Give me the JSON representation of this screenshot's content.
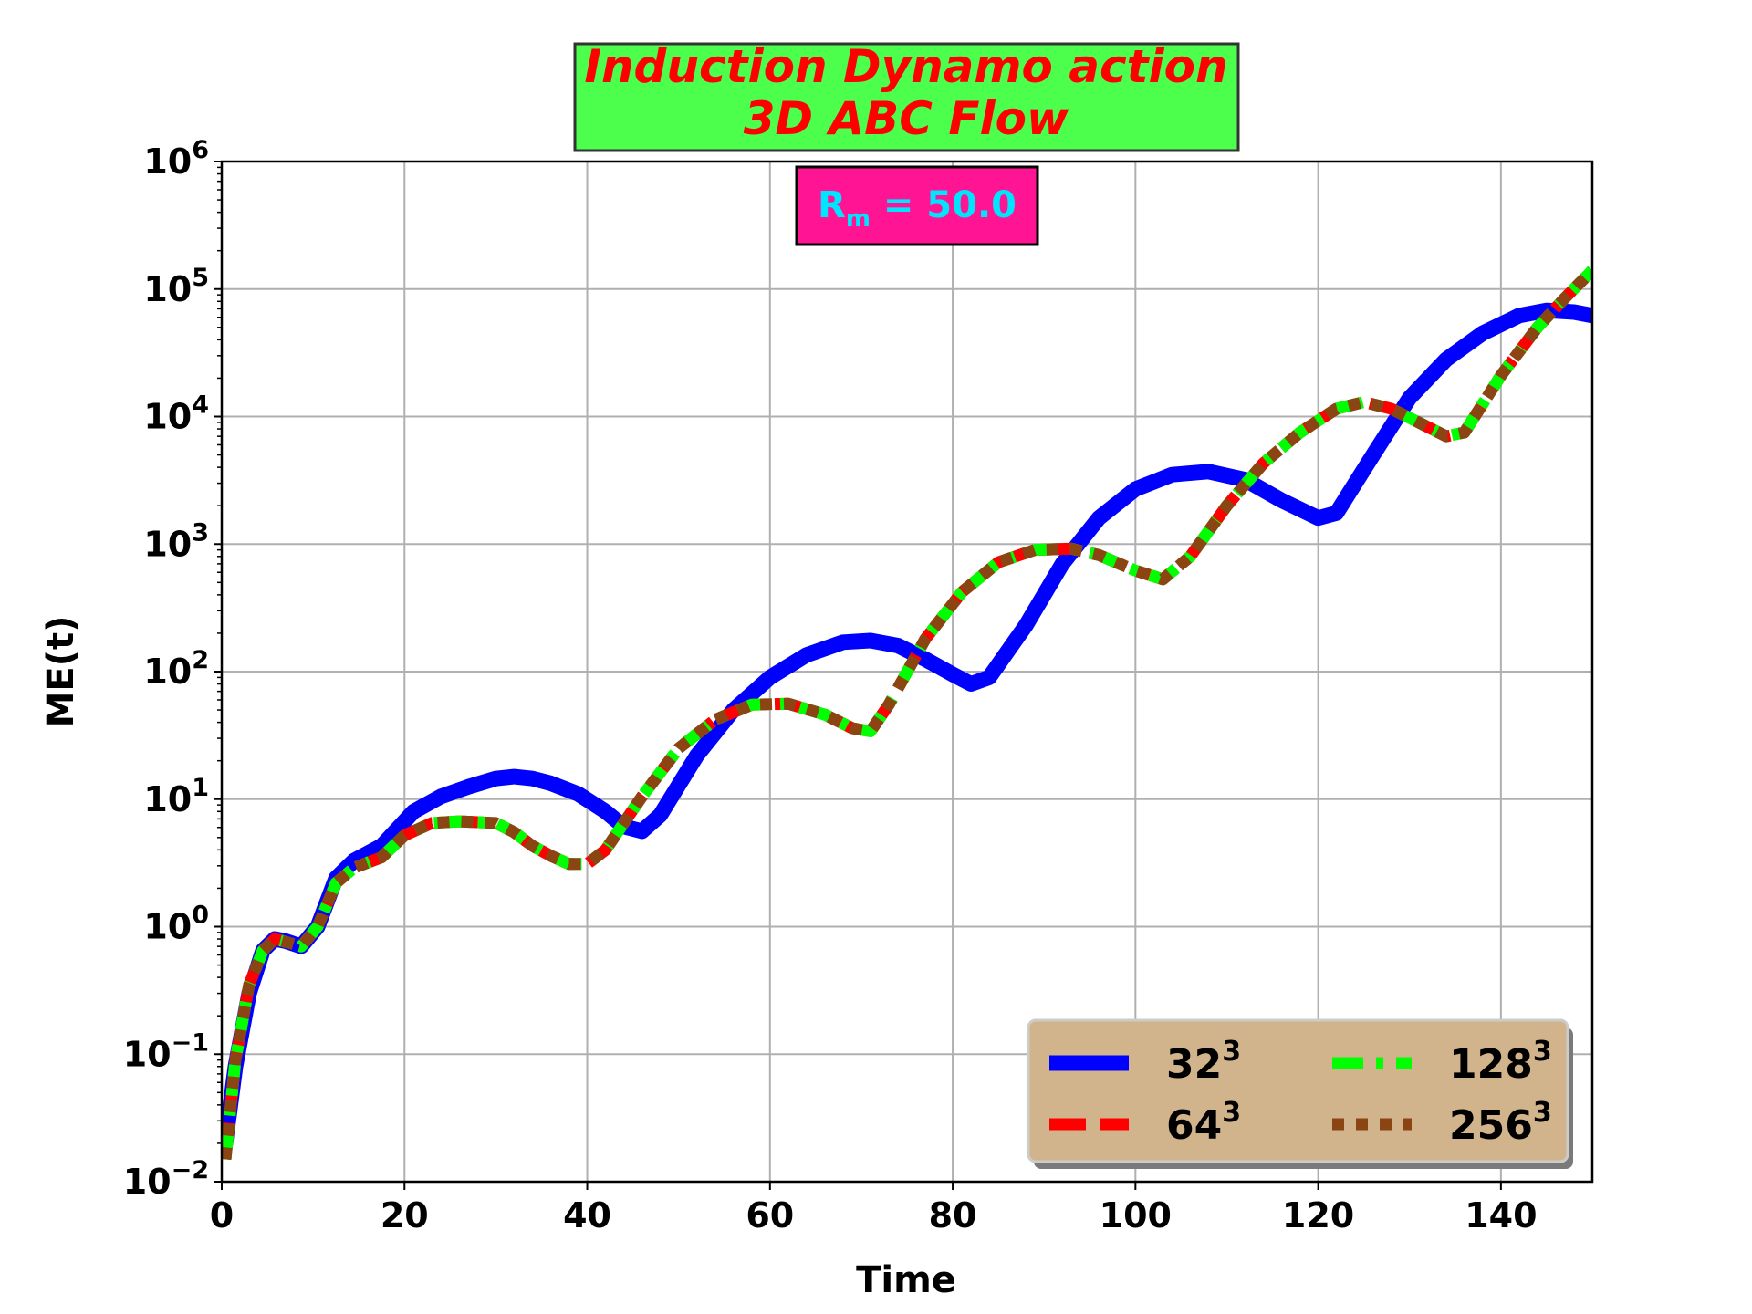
{
  "chart_data": {
    "type": "line",
    "title": [
      "Induction Dynamo action",
      "3D ABC Flow"
    ],
    "annotation": {
      "symbol": "R",
      "subscript": "m",
      "text": " = 50.0"
    },
    "xlabel": "Time",
    "ylabel": "ME(t)",
    "xlim": [
      0,
      150
    ],
    "ylim": [
      0.01,
      1000000
    ],
    "yscale": "log",
    "grid": true,
    "legend_position": "lower-right",
    "x_ticks": [
      "0",
      "20",
      "40",
      "60",
      "80",
      "100",
      "120",
      "140"
    ],
    "y_ticks": [
      {
        "base": "10",
        "exp": "−2"
      },
      {
        "base": "10",
        "exp": "−1"
      },
      {
        "base": "10",
        "exp": "0"
      },
      {
        "base": "10",
        "exp": "1"
      },
      {
        "base": "10",
        "exp": "2"
      },
      {
        "base": "10",
        "exp": "3"
      },
      {
        "base": "10",
        "exp": "4"
      },
      {
        "base": "10",
        "exp": "5"
      },
      {
        "base": "10",
        "exp": "6"
      }
    ],
    "series": [
      {
        "name": "32",
        "name_sup": "3",
        "color": "#0000ff",
        "style": "solid",
        "x": [
          0.4,
          1.5,
          3,
          4.5,
          5.8,
          7,
          8.7,
          10.5,
          12.5,
          14.5,
          17.5,
          21,
          24,
          27,
          30,
          32,
          34,
          36,
          39,
          42,
          44,
          46,
          48,
          52,
          56,
          60,
          64,
          68,
          71,
          74,
          77,
          80,
          82,
          84,
          88,
          92,
          96,
          100,
          104,
          108,
          112,
          116,
          120,
          122,
          126,
          130,
          134,
          138,
          142,
          145,
          148,
          150
        ],
        "y": [
          0.02,
          0.08,
          0.3,
          0.65,
          0.8,
          0.77,
          0.7,
          1.0,
          2.4,
          3.3,
          4.3,
          8.0,
          10.5,
          12.5,
          14.5,
          15.0,
          14.5,
          13.3,
          11.0,
          8.0,
          6.1,
          5.6,
          7.5,
          22,
          50,
          90,
          135,
          170,
          175,
          160,
          125,
          95,
          80,
          90,
          230,
          700,
          1600,
          2700,
          3500,
          3700,
          3200,
          2200,
          1600,
          1750,
          5000,
          14000,
          28000,
          45000,
          62000,
          68000,
          66000,
          62000
        ]
      },
      {
        "name": "64",
        "name_sup": "3",
        "color": "#ff0000",
        "style": "dashed",
        "x": [
          0.4,
          1.5,
          3,
          4.5,
          5.8,
          7,
          8.7,
          10.5,
          12.5,
          14.5,
          17.5,
          20,
          23,
          26,
          30,
          32,
          34,
          36,
          38,
          40,
          42,
          44,
          46,
          50,
          54,
          58,
          62,
          66,
          69,
          71,
          73,
          77,
          81,
          85,
          89,
          93,
          96,
          100,
          103,
          106,
          110,
          114,
          118,
          122,
          125,
          128,
          131,
          134,
          136,
          140,
          144,
          147,
          150
        ],
        "y": [
          0.015,
          0.09,
          0.35,
          0.65,
          0.8,
          0.76,
          0.7,
          1.0,
          2.2,
          2.9,
          3.5,
          5.2,
          6.5,
          6.7,
          6.5,
          5.5,
          4.3,
          3.6,
          3.1,
          3.1,
          4.0,
          6.5,
          10.5,
          25,
          42,
          55,
          56,
          46,
          36,
          34,
          55,
          180,
          420,
          720,
          900,
          920,
          820,
          620,
          530,
          800,
          2000,
          4300,
          7500,
          11500,
          13000,
          11500,
          9000,
          7000,
          7500,
          21000,
          50000,
          85000,
          140000
        ]
      },
      {
        "name": "128",
        "name_sup": "3",
        "color": "#00ff00",
        "style": "dashdot",
        "x": [
          0.4,
          1.5,
          3,
          4.5,
          5.8,
          7,
          8.7,
          10.5,
          12.5,
          14.5,
          17.5,
          20,
          23,
          26,
          30,
          32,
          34,
          36,
          38,
          40,
          42,
          44,
          46,
          50,
          54,
          58,
          62,
          66,
          69,
          71,
          73,
          77,
          81,
          85,
          89,
          93,
          96,
          100,
          103,
          106,
          110,
          114,
          118,
          122,
          125,
          128,
          131,
          134,
          136,
          140,
          144,
          147,
          150
        ],
        "y": [
          0.015,
          0.09,
          0.35,
          0.65,
          0.8,
          0.76,
          0.7,
          1.0,
          2.2,
          2.9,
          3.5,
          5.2,
          6.5,
          6.7,
          6.5,
          5.5,
          4.3,
          3.6,
          3.1,
          3.1,
          4.0,
          6.5,
          10.5,
          25,
          42,
          55,
          56,
          46,
          36,
          34,
          55,
          180,
          420,
          720,
          900,
          920,
          820,
          620,
          530,
          800,
          2000,
          4300,
          7500,
          11500,
          13000,
          11500,
          9000,
          7000,
          7500,
          21000,
          50000,
          85000,
          140000
        ]
      },
      {
        "name": "256",
        "name_sup": "3",
        "color": "#8b4513",
        "style": "dotted",
        "x": [
          0.4,
          1.5,
          3,
          4.5,
          5.8,
          7,
          8.7,
          10.5,
          12.5,
          14.5,
          17.5,
          20,
          23,
          26,
          30,
          32,
          34,
          36,
          38,
          40,
          42,
          44,
          46,
          50,
          54,
          58,
          62,
          66,
          69,
          71,
          73,
          77,
          81,
          85,
          89,
          93,
          96,
          100,
          103,
          106,
          110,
          114,
          118,
          122,
          125,
          128,
          131,
          134,
          136,
          140,
          144,
          147,
          150
        ],
        "y": [
          0.015,
          0.09,
          0.35,
          0.65,
          0.8,
          0.76,
          0.7,
          1.0,
          2.2,
          2.9,
          3.5,
          5.2,
          6.5,
          6.7,
          6.5,
          5.5,
          4.3,
          3.6,
          3.1,
          3.1,
          4.0,
          6.5,
          10.5,
          25,
          42,
          55,
          56,
          46,
          36,
          34,
          55,
          180,
          420,
          720,
          900,
          920,
          820,
          620,
          530,
          800,
          2000,
          4300,
          7500,
          11500,
          13000,
          11500,
          9000,
          7000,
          7500,
          21000,
          50000,
          85000,
          140000
        ]
      }
    ]
  }
}
